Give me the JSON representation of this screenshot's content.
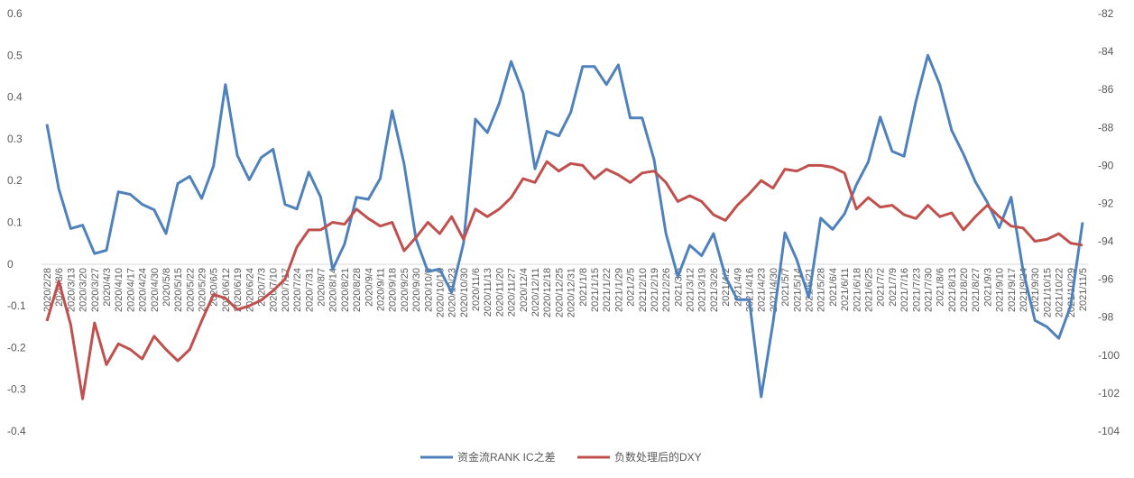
{
  "chart_data": {
    "type": "line",
    "title": "",
    "xlabel": "",
    "ylabel": "",
    "grid": false,
    "legend_position": "bottom-center",
    "ylim_left": [
      -0.4,
      0.6
    ],
    "ylim_right": [
      -104,
      -82
    ],
    "left_ticks": [
      "0.6",
      "0.5",
      "0.4",
      "0.3",
      "0.2",
      "0.1",
      "0",
      "-0.1",
      "-0.2",
      "-0.3",
      "-0.4"
    ],
    "right_ticks": [
      "-82",
      "-84",
      "-86",
      "-88",
      "-90",
      "-92",
      "-94",
      "-96",
      "-98",
      "-100",
      "-102",
      "-104"
    ],
    "x": [
      "2020/2/28",
      "2020/3/6",
      "2020/3/13",
      "2020/3/20",
      "2020/3/27",
      "2020/4/3",
      "2020/4/10",
      "2020/4/17",
      "2020/4/24",
      "2020/4/30",
      "2020/5/8",
      "2020/5/15",
      "2020/5/22",
      "2020/5/29",
      "2020/6/5",
      "2020/6/12",
      "2020/6/19",
      "2020/6/24",
      "2020/7/3",
      "2020/7/10",
      "2020/7/17",
      "2020/7/24",
      "2020/7/31",
      "2020/8/7",
      "2020/8/14",
      "2020/8/21",
      "2020/8/28",
      "2020/9/4",
      "2020/9/11",
      "2020/9/18",
      "2020/9/25",
      "2020/9/30",
      "2020/10/9",
      "2020/10/16",
      "2020/10/23",
      "2020/10/30",
      "2020/11/6",
      "2020/11/13",
      "2020/11/20",
      "2020/11/27",
      "2020/12/4",
      "2020/12/11",
      "2020/12/18",
      "2020/12/25",
      "2020/12/31",
      "2021/1/8",
      "2021/1/15",
      "2021/1/22",
      "2021/1/29",
      "2021/2/5",
      "2021/2/10",
      "2021/2/19",
      "2021/2/26",
      "2021/3/5",
      "2021/3/12",
      "2021/3/19",
      "2021/3/26",
      "2021/4/2",
      "2021/4/9",
      "2021/4/16",
      "2021/4/23",
      "2021/4/30",
      "2021/5/7",
      "2021/5/14",
      "2021/5/21",
      "2021/5/28",
      "2021/6/4",
      "2021/6/11",
      "2021/6/18",
      "2021/6/25",
      "2021/7/2",
      "2021/7/9",
      "2021/7/16",
      "2021/7/23",
      "2021/7/30",
      "2021/8/6",
      "2021/8/13",
      "2021/8/20",
      "2021/8/27",
      "2021/9/3",
      "2021/9/10",
      "2021/9/17",
      "2021/9/24",
      "2021/9/30",
      "2021/10/15",
      "2021/10/22",
      "2021/10/29",
      "2021/11/5"
    ],
    "series": [
      {
        "name": "资金流RANK IC之差",
        "axis": "left",
        "color": "#4F81BD",
        "values": [
          0.335,
          0.18,
          0.085,
          0.093,
          0.025,
          0.033,
          0.173,
          0.167,
          0.143,
          0.13,
          0.073,
          0.193,
          0.21,
          0.157,
          0.235,
          0.43,
          0.26,
          0.202,
          0.255,
          0.275,
          0.143,
          0.132,
          0.22,
          0.16,
          -0.013,
          0.048,
          0.16,
          0.155,
          0.205,
          0.367,
          0.24,
          0.06,
          -0.018,
          -0.012,
          -0.068,
          0.05,
          0.347,
          0.315,
          0.385,
          0.485,
          0.41,
          0.228,
          0.318,
          0.307,
          0.363,
          0.473,
          0.473,
          0.43,
          0.477,
          0.35,
          0.35,
          0.25,
          0.073,
          -0.03,
          0.045,
          0.02,
          0.073,
          -0.03,
          -0.085,
          -0.085,
          -0.318,
          -0.14,
          0.075,
          0.01,
          -0.08,
          0.11,
          0.083,
          0.12,
          0.19,
          0.245,
          0.352,
          0.27,
          0.258,
          0.39,
          0.5,
          0.43,
          0.32,
          0.263,
          0.197,
          0.148,
          0.087,
          0.16,
          -0.015,
          -0.135,
          -0.15,
          -0.178,
          -0.1,
          0.1
        ]
      },
      {
        "name": "负数处理后的DXY",
        "axis": "right",
        "color": "#C0504D",
        "values": [
          -98.2,
          -96.1,
          -98.4,
          -102.3,
          -98.3,
          -100.5,
          -99.4,
          -99.7,
          -100.2,
          -99.0,
          -99.7,
          -100.3,
          -99.7,
          -98.2,
          -96.8,
          -97.0,
          -97.6,
          -97.4,
          -97.1,
          -96.6,
          -96.0,
          -94.3,
          -93.4,
          -93.4,
          -93.0,
          -93.1,
          -92.3,
          -92.8,
          -93.2,
          -93.0,
          -94.5,
          -93.8,
          -93.0,
          -93.6,
          -92.7,
          -93.9,
          -92.3,
          -92.7,
          -92.3,
          -91.7,
          -90.7,
          -90.9,
          -89.8,
          -90.3,
          -89.9,
          -90.0,
          -90.7,
          -90.2,
          -90.5,
          -90.9,
          -90.4,
          -90.3,
          -90.9,
          -91.9,
          -91.6,
          -91.9,
          -92.6,
          -92.9,
          -92.1,
          -91.5,
          -90.8,
          -91.2,
          -90.2,
          -90.3,
          -90.0,
          -90.0,
          -90.1,
          -90.4,
          -92.3,
          -91.7,
          -92.2,
          -92.1,
          -92.6,
          -92.8,
          -92.1,
          -92.7,
          -92.5,
          -93.4,
          -92.7,
          -92.1,
          -92.7,
          -93.2,
          -93.3,
          -94.0,
          -93.9,
          -93.6,
          -94.1,
          -94.2
        ]
      }
    ]
  }
}
